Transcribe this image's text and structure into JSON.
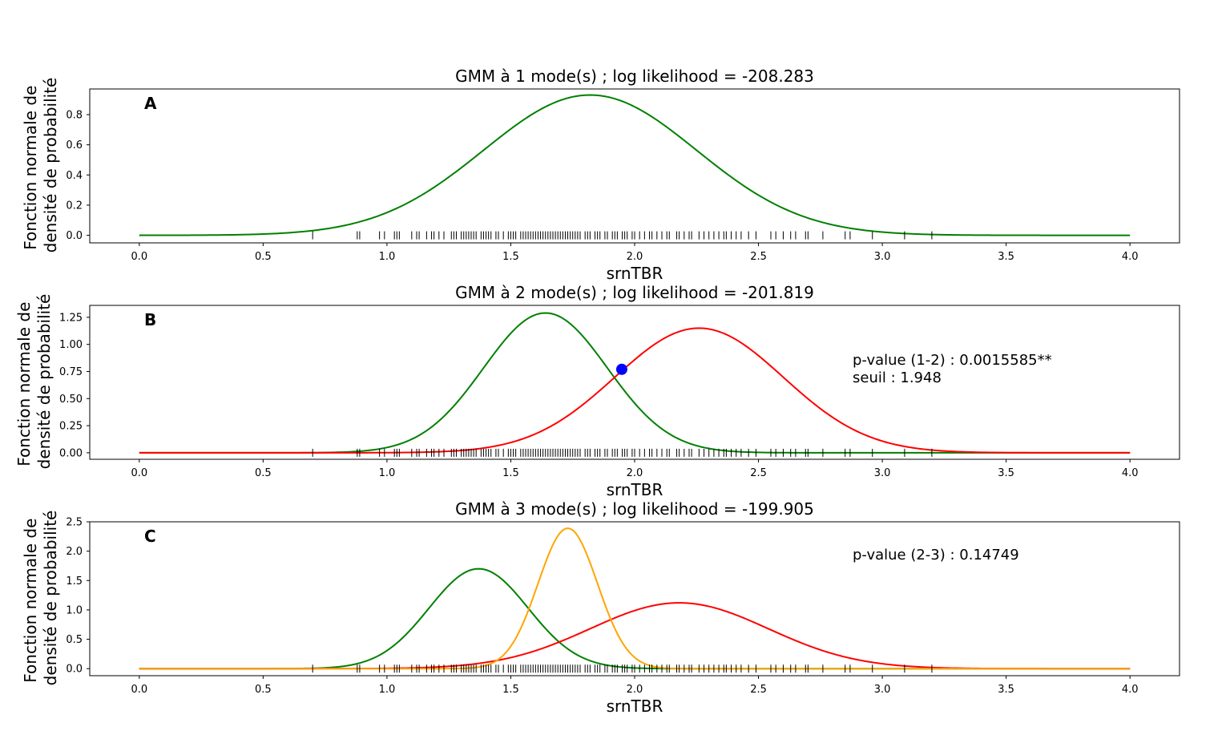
{
  "figure": {
    "background": "#ffffff"
  },
  "chart_data": [
    {
      "type": "line",
      "panel_letter": "A",
      "title": "GMM à 1 mode(s) ; log likelihood = -208.283",
      "xlabel": "srnTBR",
      "ylabel": [
        "Fonction normale de",
        "densité de probabilité"
      ],
      "xlim": [
        -0.2,
        4.2
      ],
      "ylim": [
        -0.05,
        0.97
      ],
      "xticks": [
        0.0,
        0.5,
        1.0,
        1.5,
        2.0,
        2.5,
        3.0,
        3.5,
        4.0
      ],
      "xtick_labels": [
        "0.0",
        "0.5",
        "1.0",
        "1.5",
        "2.0",
        "2.5",
        "3.0",
        "3.5",
        "4.0"
      ],
      "yticks": [
        0.0,
        0.2,
        0.4,
        0.6,
        0.8
      ],
      "ytick_labels": [
        "0.0",
        "0.2",
        "0.4",
        "0.6",
        "0.8"
      ],
      "grid": false,
      "series": [
        {
          "component": "gaussian",
          "mean": 1.82,
          "sd": 0.43,
          "peak": 0.93,
          "color": "#008000"
        }
      ],
      "annotations": [],
      "rug": true
    },
    {
      "type": "line",
      "panel_letter": "B",
      "title": "GMM à 2 mode(s) ; log likelihood = -201.819",
      "xlabel": "srnTBR",
      "ylabel": [
        "Fonction normale de",
        "densité de probabilité"
      ],
      "xlim": [
        -0.2,
        4.2
      ],
      "ylim": [
        -0.06,
        1.36
      ],
      "xticks": [
        0.0,
        0.5,
        1.0,
        1.5,
        2.0,
        2.5,
        3.0,
        3.5,
        4.0
      ],
      "xtick_labels": [
        "0.0",
        "0.5",
        "1.0",
        "1.5",
        "2.0",
        "2.5",
        "3.0",
        "3.5",
        "4.0"
      ],
      "yticks": [
        0.0,
        0.25,
        0.5,
        0.75,
        1.0,
        1.25
      ],
      "ytick_labels": [
        "0.00",
        "0.25",
        "0.50",
        "0.75",
        "1.00",
        "1.25"
      ],
      "grid": false,
      "series": [
        {
          "component": "gaussian",
          "mean": 1.64,
          "sd": 0.25,
          "peak": 1.29,
          "color": "#008000"
        },
        {
          "component": "gaussian",
          "mean": 2.26,
          "sd": 0.34,
          "peak": 1.15,
          "color": "#ff0000"
        }
      ],
      "marker": {
        "x": 1.948,
        "y": 0.77,
        "color": "#0000ff"
      },
      "annotations": [
        "p-value (1-2) : 0.0015585**",
        "seuil : 1.948"
      ],
      "rug": true
    },
    {
      "type": "line",
      "panel_letter": "C",
      "title": "GMM à 3 mode(s) ; log likelihood = -199.905",
      "xlabel": "srnTBR",
      "ylabel": [
        "Fonction normale de",
        "densité de probabilité"
      ],
      "xlim": [
        -0.2,
        4.2
      ],
      "ylim": [
        -0.12,
        2.5
      ],
      "xticks": [
        0.0,
        0.5,
        1.0,
        1.5,
        2.0,
        2.5,
        3.0,
        3.5,
        4.0
      ],
      "xtick_labels": [
        "0.0",
        "0.5",
        "1.0",
        "1.5",
        "2.0",
        "2.5",
        "3.0",
        "3.5",
        "4.0"
      ],
      "yticks": [
        0.0,
        0.5,
        1.0,
        1.5,
        2.0,
        2.5
      ],
      "ytick_labels": [
        "0.0",
        "0.5",
        "1.0",
        "1.5",
        "2.0",
        "2.5"
      ],
      "grid": false,
      "series": [
        {
          "component": "gaussian",
          "mean": 1.37,
          "sd": 0.2,
          "peak": 1.7,
          "color": "#008000"
        },
        {
          "component": "gaussian",
          "mean": 2.18,
          "sd": 0.36,
          "peak": 1.12,
          "color": "#ff0000"
        },
        {
          "component": "gaussian",
          "mean": 1.73,
          "sd": 0.12,
          "peak": 2.39,
          "color": "#ffa500"
        }
      ],
      "annotations": [
        "p-value (2-3) : 0.14749"
      ],
      "rug": true
    }
  ],
  "rug_values": [
    0.7,
    0.88,
    0.89,
    0.97,
    0.99,
    1.03,
    1.04,
    1.05,
    1.1,
    1.12,
    1.13,
    1.16,
    1.18,
    1.19,
    1.21,
    1.23,
    1.26,
    1.27,
    1.28,
    1.3,
    1.31,
    1.32,
    1.33,
    1.34,
    1.35,
    1.36,
    1.38,
    1.39,
    1.4,
    1.41,
    1.42,
    1.44,
    1.45,
    1.47,
    1.49,
    1.5,
    1.51,
    1.52,
    1.54,
    1.55,
    1.56,
    1.57,
    1.58,
    1.59,
    1.6,
    1.61,
    1.62,
    1.63,
    1.64,
    1.65,
    1.66,
    1.67,
    1.68,
    1.69,
    1.7,
    1.71,
    1.72,
    1.73,
    1.74,
    1.75,
    1.76,
    1.77,
    1.78,
    1.8,
    1.81,
    1.82,
    1.84,
    1.85,
    1.86,
    1.88,
    1.89,
    1.91,
    1.92,
    1.93,
    1.95,
    1.96,
    1.97,
    1.99,
    2.0,
    2.02,
    2.04,
    2.06,
    2.07,
    2.09,
    2.11,
    2.13,
    2.14,
    2.17,
    2.18,
    2.2,
    2.22,
    2.23,
    2.26,
    2.28,
    2.3,
    2.32,
    2.34,
    2.36,
    2.37,
    2.39,
    2.41,
    2.43,
    2.46,
    2.49,
    2.55,
    2.57,
    2.6,
    2.63,
    2.65,
    2.69,
    2.7,
    2.76,
    2.85,
    2.87,
    2.96,
    3.09,
    3.2
  ]
}
